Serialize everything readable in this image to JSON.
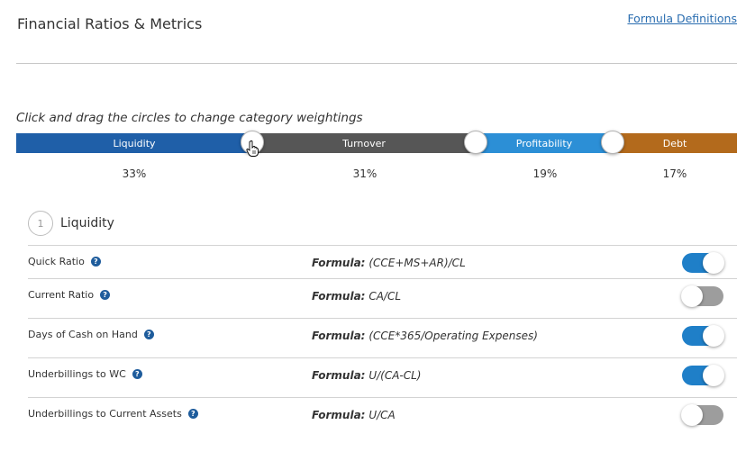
{
  "header": {
    "title": "Financial Ratios & Metrics",
    "definitions_link": "Formula Definitions"
  },
  "weighting": {
    "instructions": "Click and drag the circles to change category weightings",
    "categories": [
      {
        "label": "Liquidity",
        "percent": "33%",
        "weight": 33,
        "color": "#1f5fa8"
      },
      {
        "label": "Turnover",
        "percent": "31%",
        "weight": 31,
        "color": "#565656"
      },
      {
        "label": "Profitability",
        "percent": "19%",
        "weight": 19,
        "color": "#2c8fd6"
      },
      {
        "label": "Debt",
        "percent": "17%",
        "weight": 17,
        "color": "#b36a1c"
      }
    ]
  },
  "section": {
    "number": "1",
    "title": "Liquidity"
  },
  "metrics": [
    {
      "name": "Quick Ratio",
      "formula_label": "Formula:",
      "formula": "(CCE+MS+AR)/CL",
      "enabled": true
    },
    {
      "name": "Current Ratio",
      "formula_label": "Formula:",
      "formula": "CA/CL",
      "enabled": false
    },
    {
      "name": "Days of Cash on Hand",
      "formula_label": "Formula:",
      "formula": "(CCE*365/Operating Expenses)",
      "enabled": true
    },
    {
      "name": "Underbillings to WC",
      "formula_label": "Formula:",
      "formula": "U/(CA-CL)",
      "enabled": true
    },
    {
      "name": "Underbillings to Current Assets",
      "formula_label": "Formula:",
      "formula": "U/CA",
      "enabled": false
    }
  ],
  "icons": {
    "help": "question-circle-icon",
    "cursor": "hand-pointer-icon"
  },
  "colors": {
    "toggle_on": "#1f7fc8",
    "toggle_off": "#9d9d9d",
    "link": "#2a6db0",
    "help_icon": "#1e5c9c"
  }
}
